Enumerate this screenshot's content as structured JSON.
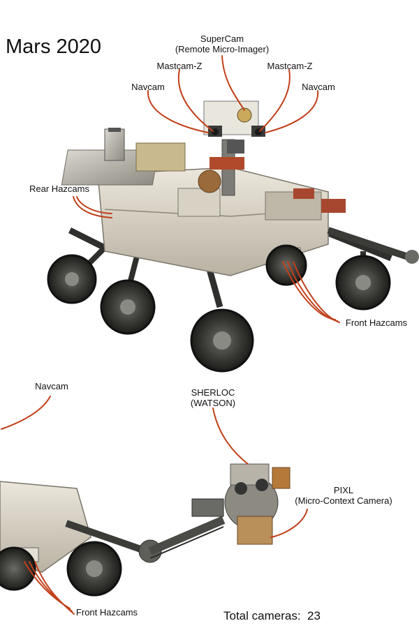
{
  "title": "Mars 2020",
  "labels": {
    "supercam": {
      "line1": "SuperCam",
      "line2": "(Remote Micro-Imager)"
    },
    "mastcam_left": "Mastcam-Z",
    "mastcam_right": "Mastcam-Z",
    "navcam_left": "Navcam",
    "navcam_right": "Navcam",
    "rear_hazcams": "Rear Hazcams",
    "front_hazcams_top": "Front Hazcams",
    "navcam_bottom": "Navcam",
    "sherloc": {
      "line1": "SHERLOC",
      "line2": "(WATSON)"
    },
    "pixl": {
      "line1": "PIXL",
      "line2": "(Micro-Context Camera)"
    },
    "front_hazcams_bottom": "Front Hazcams"
  },
  "total": {
    "label": "Total cameras:",
    "value": "23"
  },
  "colors": {
    "leader": "#c0401a",
    "text": "#111111",
    "background": "#ffffff"
  }
}
